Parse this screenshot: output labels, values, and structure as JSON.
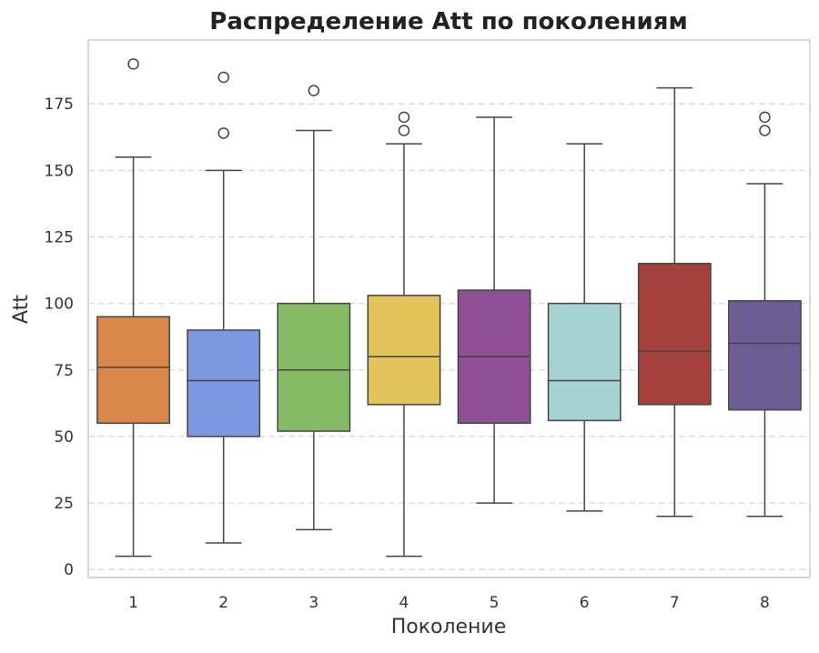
{
  "chart_data": {
    "type": "box",
    "title": "Распределение Att по поколениям",
    "xlabel": "Поколение",
    "ylabel": "Att",
    "ylim": [
      -3,
      199
    ],
    "yticks": [
      0,
      25,
      50,
      75,
      100,
      125,
      150,
      175
    ],
    "grid": "horizontal-dashed",
    "categories": [
      "1",
      "2",
      "3",
      "4",
      "5",
      "6",
      "7",
      "8"
    ],
    "boxes": [
      {
        "category": "1",
        "whisker_low": 5,
        "q1": 55,
        "median": 76,
        "q3": 95,
        "whisker_high": 155,
        "outliers": [
          190
        ],
        "color": "#d9874a"
      },
      {
        "category": "2",
        "whisker_low": 10,
        "q1": 50,
        "median": 71,
        "q3": 90,
        "whisker_high": 150,
        "outliers": [
          164,
          185
        ],
        "color": "#7b98e0"
      },
      {
        "category": "3",
        "whisker_low": 15,
        "q1": 52,
        "median": 75,
        "q3": 100,
        "whisker_high": 165,
        "outliers": [
          180
        ],
        "color": "#86bb65"
      },
      {
        "category": "4",
        "whisker_low": 5,
        "q1": 62,
        "median": 80,
        "q3": 103,
        "whisker_high": 160,
        "outliers": [
          165,
          170
        ],
        "color": "#e2c45a"
      },
      {
        "category": "5",
        "whisker_low": 25,
        "q1": 55,
        "median": 80,
        "q3": 105,
        "whisker_high": 170,
        "outliers": [],
        "color": "#8e4f95"
      },
      {
        "category": "6",
        "whisker_low": 22,
        "q1": 56,
        "median": 71,
        "q3": 100,
        "whisker_high": 160,
        "outliers": [],
        "color": "#a6d2d2"
      },
      {
        "category": "7",
        "whisker_low": 20,
        "q1": 62,
        "median": 82,
        "q3": 115,
        "whisker_high": 181,
        "outliers": [],
        "color": "#a5403a"
      },
      {
        "category": "8",
        "whisker_low": 20,
        "q1": 60,
        "median": 85,
        "q3": 101,
        "whisker_high": 145,
        "outliers": [
          165,
          170
        ],
        "color": "#6c5d93"
      }
    ]
  }
}
